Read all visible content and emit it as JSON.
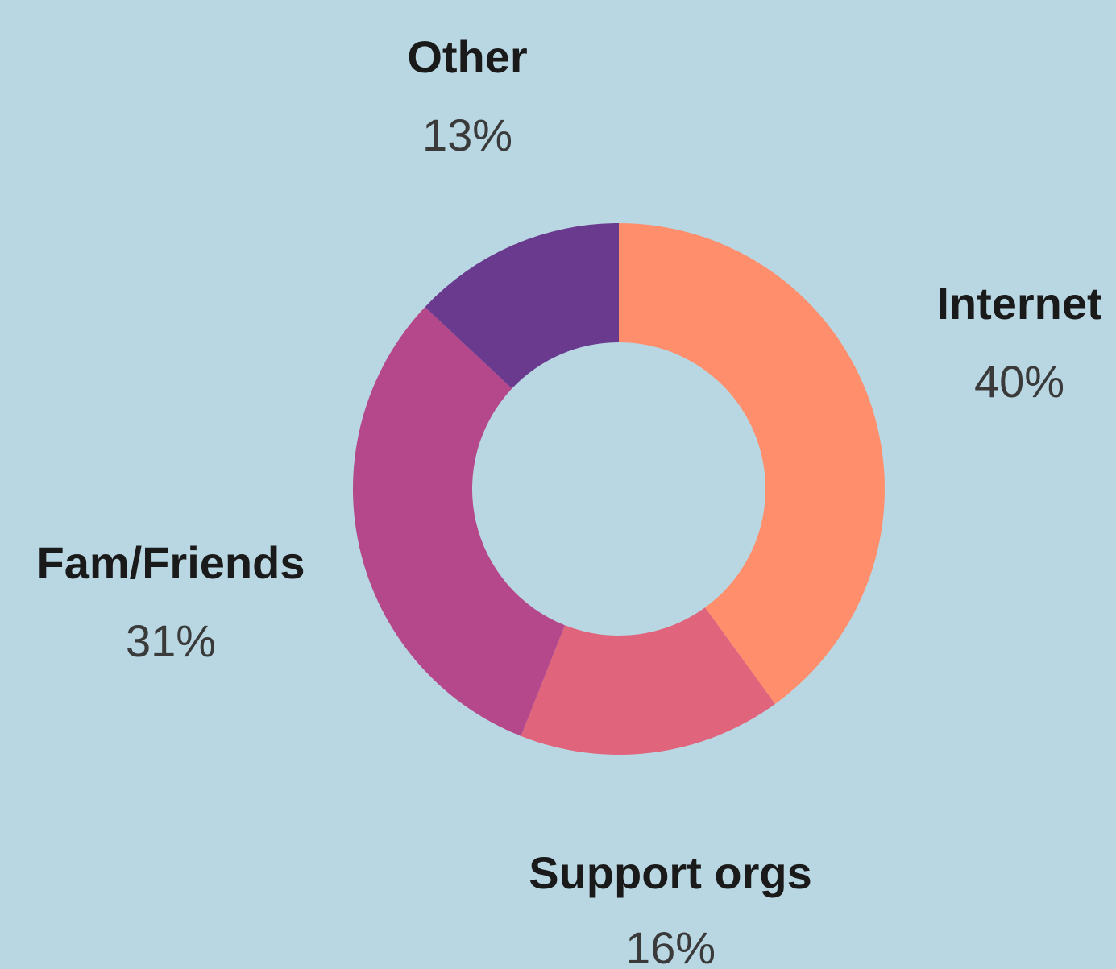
{
  "chart_data": {
    "type": "pie",
    "variant": "donut",
    "title": "",
    "slices": [
      {
        "label": "Internet",
        "value": 40,
        "display": "40%",
        "color": "#ff8e6c"
      },
      {
        "label": "Support orgs",
        "value": 16,
        "display": "16%",
        "color": "#e0647c"
      },
      {
        "label": "Fam/Friends",
        "value": 31,
        "display": "31%",
        "color": "#b4488a"
      },
      {
        "label": "Other",
        "value": 13,
        "display": "13%",
        "color": "#6a3a8f"
      }
    ],
    "background_color": "#b9d7e2",
    "legend": "none",
    "start_angle": "12 o'clock",
    "direction": "clockwise"
  }
}
